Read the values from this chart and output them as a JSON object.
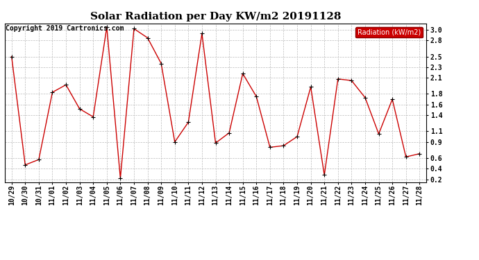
{
  "title": "Solar Radiation per Day KW/m2 20191128",
  "copyright_text": "Copyright 2019 Cartronics.com",
  "legend_label": "Radiation (kW/m2)",
  "background_color": "#ffffff",
  "plot_bg_color": "#ffffff",
  "grid_color": "#bbbbbb",
  "line_color": "#cc0000",
  "marker_color": "#000000",
  "dates": [
    "10/29",
    "10/30",
    "10/31",
    "11/01",
    "11/02",
    "11/03",
    "11/04",
    "11/05",
    "11/06",
    "11/07",
    "11/08",
    "11/09",
    "11/10",
    "11/11",
    "11/12",
    "11/13",
    "11/14",
    "11/15",
    "11/16",
    "11/17",
    "11/18",
    "11/19",
    "11/20",
    "11/21",
    "11/22",
    "11/23",
    "11/24",
    "11/25",
    "11/26",
    "11/27",
    "11/28"
  ],
  "values": [
    2.5,
    0.47,
    0.57,
    1.83,
    1.97,
    1.52,
    1.37,
    3.05,
    0.22,
    3.02,
    2.85,
    2.37,
    0.9,
    1.27,
    2.93,
    0.88,
    1.07,
    2.18,
    1.75,
    0.8,
    0.83,
    1.0,
    1.93,
    0.28,
    2.08,
    2.05,
    1.73,
    1.05,
    1.7,
    0.62,
    0.68
  ],
  "ylim": [
    0.15,
    3.12
  ],
  "right_ticks": [
    0.2,
    0.4,
    0.6,
    0.9,
    1.1,
    1.4,
    1.6,
    1.8,
    2.1,
    2.3,
    2.5,
    2.8,
    3.0
  ],
  "right_labels": [
    "0.2",
    "0.4",
    "0.6",
    "0.9",
    "1.1",
    "1.4",
    "1.6",
    "1.8",
    "2.1",
    "2.3",
    "2.5",
    "2.8",
    "3.0"
  ],
  "title_fontsize": 11,
  "tick_fontsize": 7,
  "legend_fontsize": 7,
  "copyright_fontsize": 7
}
